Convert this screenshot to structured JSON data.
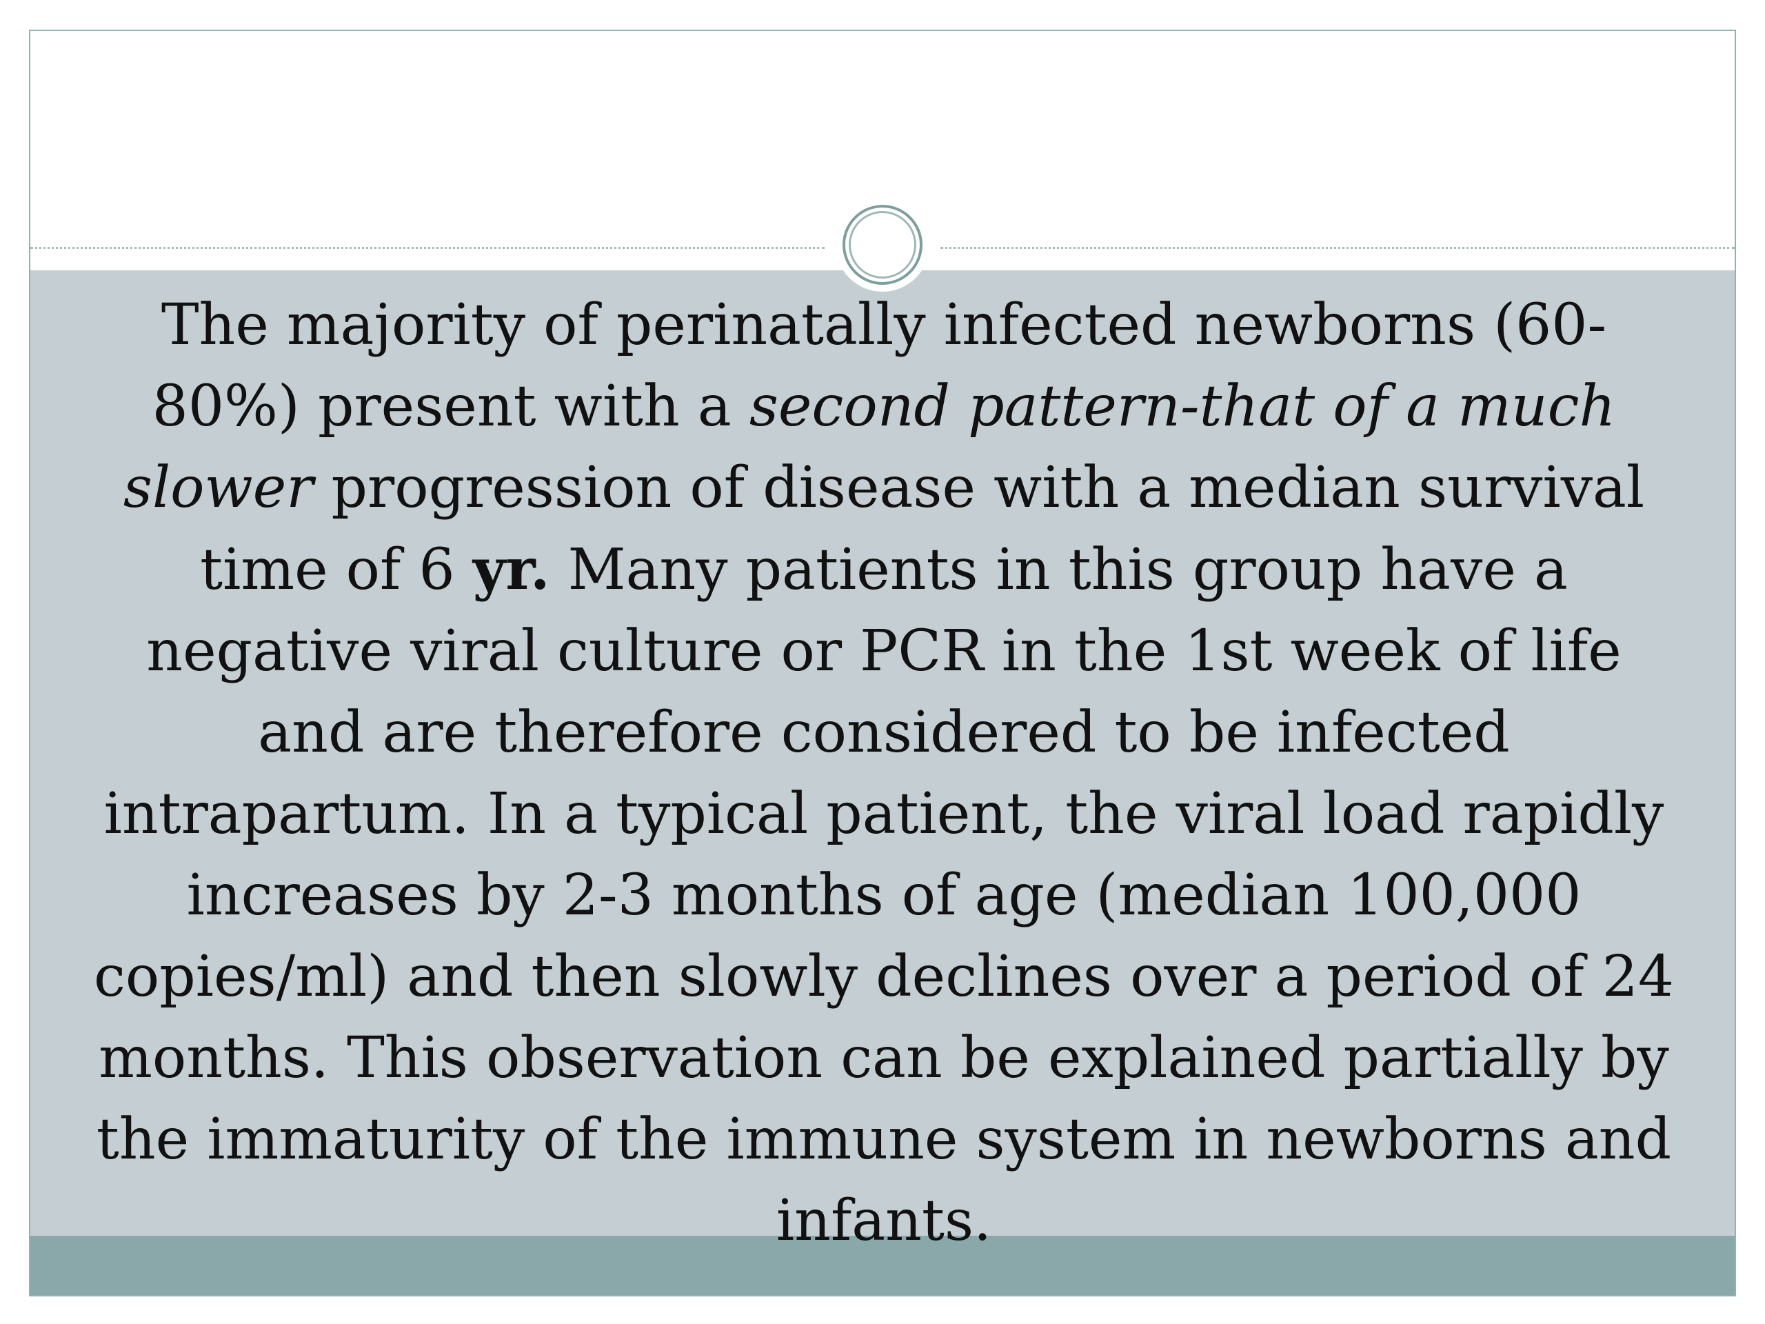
{
  "slide": {
    "title": "",
    "body": {
      "part1": "The majority of perinatally infected newborns (60-80%) present with a ",
      "part2_italic": "second pattern-that of a much slower",
      "part3": " progression of disease with a median survival time of 6 ",
      "part4_bold": "yr.",
      "part5": " Many patients in this group have a negative viral culture or PCR in the 1st week of life and are therefore considered to be infected intrapartum. In a typical patient, the viral load rapidly increases by 2-3 months of age (median 100,000 copies/ml) and then slowly declines over a period of 24 months. This observation can be explained partially by the immaturity of the immune system in newborns and infants."
    }
  },
  "theme": {
    "panel_color": "#c5cfd3",
    "footer_color": "#8aa8a9",
    "accent_ring_color": "#7e9e9e"
  }
}
